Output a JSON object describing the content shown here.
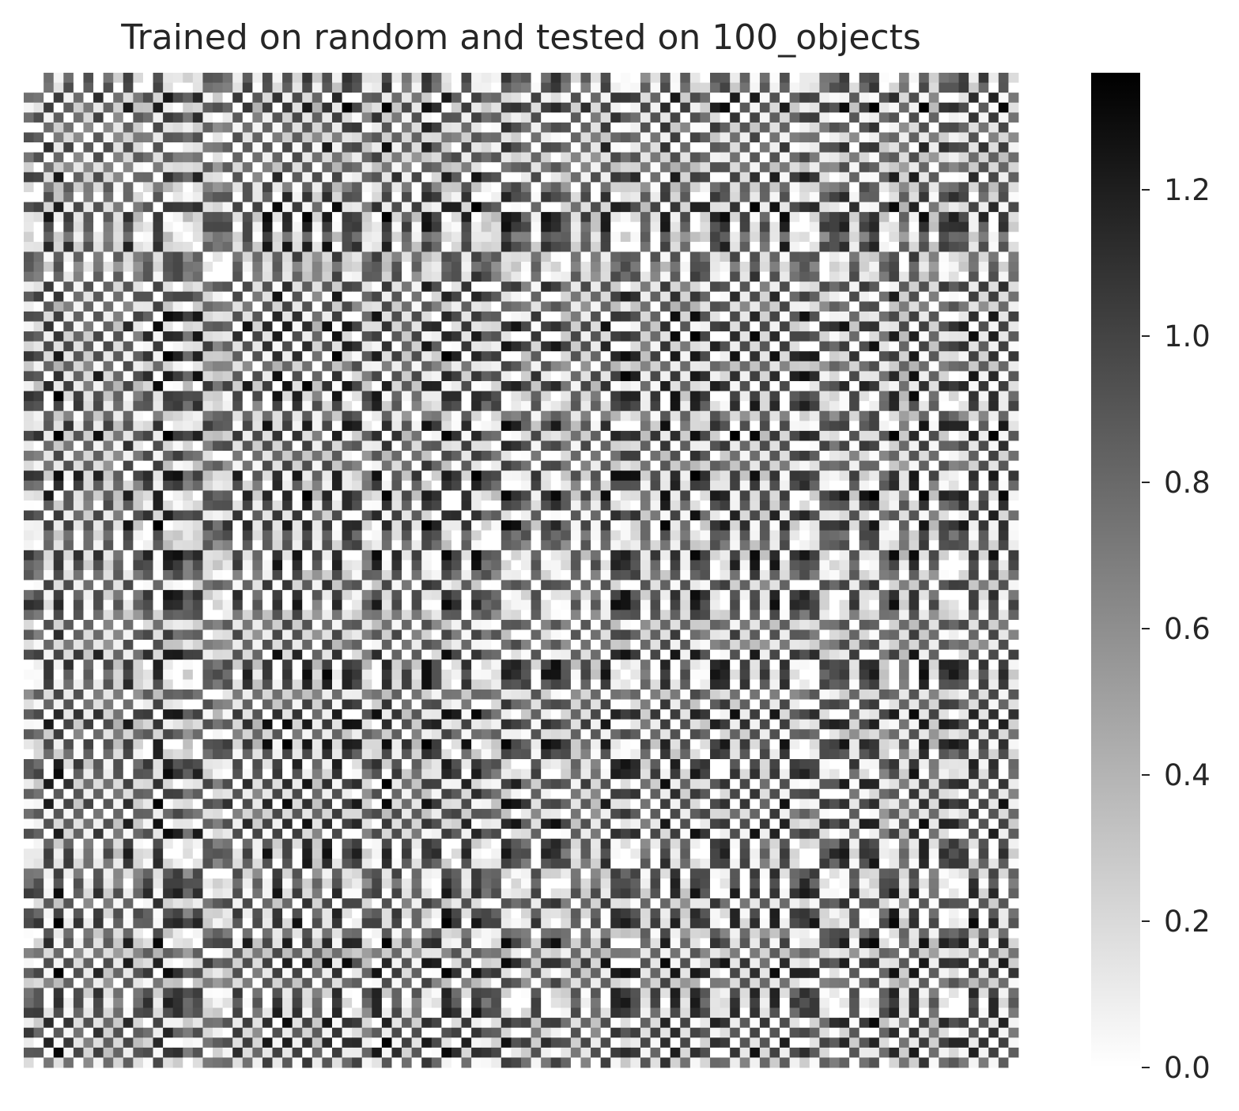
{
  "chart_data": {
    "type": "heatmap",
    "title": "Trained on random and tested on 100_objects",
    "xlabel": "",
    "ylabel": "",
    "rows": 100,
    "cols": 100,
    "x_tick_labels": [],
    "y_tick_labels": [],
    "diagonal_value": 0.0,
    "colormap": {
      "low_color": "#ffffff",
      "high_color": "#000000"
    },
    "colorbar": {
      "vmin": 0.0,
      "vmax": 1.36,
      "ticks": [
        "0.0",
        "0.2",
        "0.4",
        "0.6",
        "0.8",
        "1.0",
        "1.2"
      ],
      "tick_values": [
        0.0,
        0.2,
        0.4,
        0.6,
        0.8,
        1.0,
        1.2
      ]
    },
    "description": "Symmetric 100x100 distance matrix with zero diagonal; values range from 0.0 to about 1.36 with a strong checkerboard row/column pattern."
  }
}
